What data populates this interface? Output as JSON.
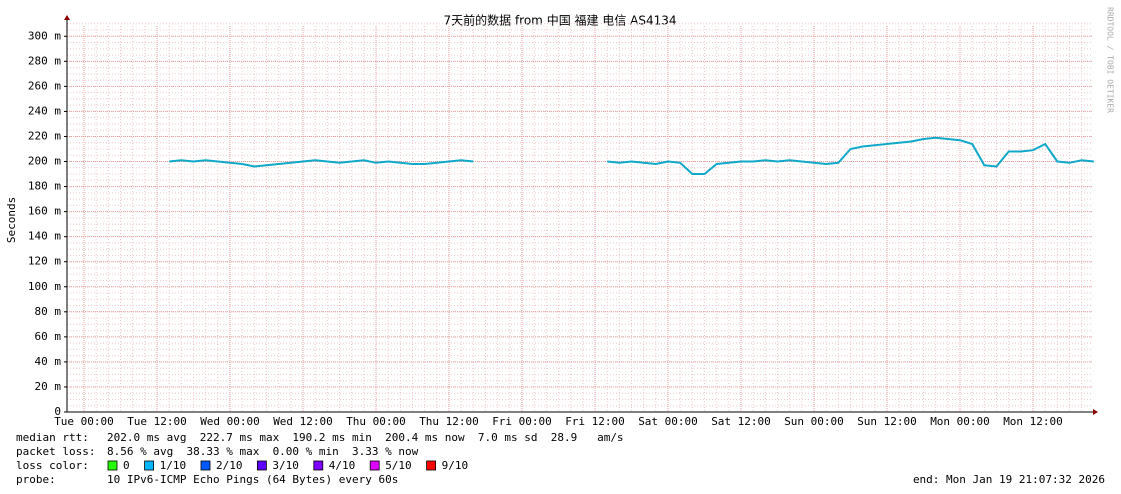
{
  "chart_data": {
    "type": "line",
    "title": "7天前的数据 from 中国 福建 电信 AS4134",
    "y_label": "Seconds",
    "side_text": "RRDTOOL / TOBI OETIKER",
    "categories": [
      "Tue 00:00",
      null,
      null,
      null,
      null,
      null,
      "Tue 12:00",
      null,
      null,
      null,
      null,
      null,
      "Wed 00:00",
      null,
      null,
      null,
      null,
      null,
      "Wed 12:00",
      null,
      null,
      null,
      null,
      null,
      "Thu 00:00",
      null,
      null,
      null,
      null,
      null,
      "Thu 12:00",
      null,
      null,
      null,
      null,
      null,
      "Fri 00:00",
      null,
      null,
      null,
      null,
      null,
      "Fri 12:00",
      null,
      null,
      null,
      null,
      null,
      "Sat 00:00",
      null,
      null,
      null,
      null,
      null,
      "Sat 12:00",
      null,
      null,
      null,
      null,
      null,
      "Sun 00:00",
      null,
      null,
      null,
      null,
      null,
      "Sun 12:00",
      null,
      null,
      null,
      null,
      null,
      "Mon 00:00",
      null,
      null,
      null,
      null,
      null,
      "Mon 12:00",
      null,
      null,
      null,
      null,
      null
    ],
    "series": [
      {
        "name": "median rtt",
        "color": "#10a8c8",
        "values": [
          null,
          null,
          null,
          null,
          null,
          null,
          null,
          200,
          201,
          200,
          201,
          200,
          199,
          198,
          196,
          197,
          198,
          199,
          200,
          201,
          200,
          199,
          200,
          201,
          199,
          200,
          199,
          198,
          198,
          199,
          200,
          201,
          200,
          null,
          null,
          null,
          null,
          null,
          null,
          null,
          null,
          null,
          null,
          200,
          199,
          200,
          199,
          198,
          200,
          199,
          190,
          190,
          198,
          199,
          200,
          200,
          201,
          200,
          201,
          200,
          199,
          198,
          199,
          210,
          212,
          213,
          214,
          215,
          216,
          218,
          219,
          218,
          217,
          214,
          197,
          196,
          208,
          208,
          209,
          214,
          200,
          199,
          201,
          200
        ]
      }
    ],
    "ylim": [
      0,
      313
    ],
    "yticks": [
      {
        "value": 0,
        "label": "0"
      },
      {
        "value": 20,
        "label": "20 m"
      },
      {
        "value": 40,
        "label": "40 m"
      },
      {
        "value": 60,
        "label": "60 m"
      },
      {
        "value": 80,
        "label": "80 m"
      },
      {
        "value": 100,
        "label": "100 m"
      },
      {
        "value": 120,
        "label": "120 m"
      },
      {
        "value": 140,
        "label": "140 m"
      },
      {
        "value": 160,
        "label": "160 m"
      },
      {
        "value": 180,
        "label": "180 m"
      },
      {
        "value": 200,
        "label": "200 m"
      },
      {
        "value": 220,
        "label": "220 m"
      },
      {
        "value": 240,
        "label": "240 m"
      },
      {
        "value": 260,
        "label": "260 m"
      },
      {
        "value": 280,
        "label": "280 m"
      },
      {
        "value": 300,
        "label": "300 m"
      }
    ],
    "grid": true
  },
  "footer": {
    "median_rtt": {
      "label": "median rtt:",
      "text": "202.0 ms avg  222.7 ms max  190.2 ms min  200.4 ms now  7.0 ms sd  28.9   am/s"
    },
    "packet_loss": {
      "label": "packet loss:",
      "text": "8.56 % avg  38.33 % max  0.00 % min  3.33 % now"
    },
    "loss_color": {
      "label": "loss color:",
      "items": [
        {
          "name": "0",
          "color": "#26ff00"
        },
        {
          "name": "1/10",
          "color": "#00b8ff"
        },
        {
          "name": "2/10",
          "color": "#0059ff"
        },
        {
          "name": "3/10",
          "color": "#5e00ff"
        },
        {
          "name": "4/10",
          "color": "#7e00ff"
        },
        {
          "name": "5/10",
          "color": "#dd00ff"
        },
        {
          "name": "9/10",
          "color": "#ff0000"
        }
      ]
    },
    "probe": {
      "label": "probe:",
      "text": "10 IPv6-ICMP Echo Pings (64 Bytes) every 60s"
    },
    "end": "end: Mon Jan 19 21:07:32 2026"
  }
}
